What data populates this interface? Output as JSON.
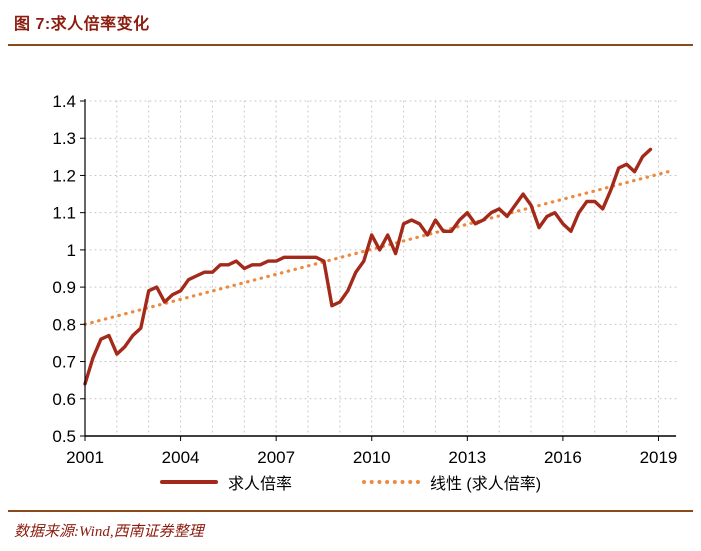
{
  "header": {
    "title": "图 7:求人倍率变化"
  },
  "footer": {
    "source": "数据来源:Wind,西南证券整理"
  },
  "chart_data": {
    "type": "line",
    "title": "求人倍率变化",
    "xlabel": "",
    "ylabel": "",
    "ylim": [
      0.5,
      1.4
    ],
    "xlim": [
      2001,
      2019
    ],
    "grid": "dotted",
    "grid_color": "#c4c4c4",
    "legend_position": "bottom",
    "x_ticks": [
      2001,
      2004,
      2007,
      2010,
      2013,
      2016,
      2019
    ],
    "y_ticks": [
      0.5,
      0.6,
      0.7,
      0.8,
      0.9,
      1,
      1.1,
      1.2,
      1.3,
      1.4
    ],
    "series": [
      {
        "name": "求人倍率",
        "color": "#a32a1a",
        "style": "solid",
        "x_start": 2001,
        "x_step": 0.25,
        "values": [
          0.64,
          0.71,
          0.76,
          0.77,
          0.72,
          0.74,
          0.77,
          0.79,
          0.89,
          0.9,
          0.86,
          0.88,
          0.89,
          0.92,
          0.93,
          0.94,
          0.94,
          0.96,
          0.96,
          0.97,
          0.95,
          0.96,
          0.96,
          0.97,
          0.97,
          0.98,
          0.98,
          0.98,
          0.98,
          0.98,
          0.97,
          0.85,
          0.86,
          0.89,
          0.94,
          0.97,
          1.04,
          1.0,
          1.04,
          0.99,
          1.07,
          1.08,
          1.07,
          1.04,
          1.08,
          1.05,
          1.05,
          1.08,
          1.1,
          1.07,
          1.08,
          1.1,
          1.11,
          1.09,
          1.12,
          1.15,
          1.12,
          1.06,
          1.09,
          1.1,
          1.07,
          1.05,
          1.1,
          1.13,
          1.13,
          1.11,
          1.16,
          1.22,
          1.23,
          1.21,
          1.25,
          1.27
        ]
      },
      {
        "name": "线性 (求人倍率)",
        "color": "#ed8a40",
        "style": "dotted",
        "x": [
          2001,
          2019.3
        ],
        "values": [
          0.8,
          1.21
        ]
      }
    ]
  }
}
